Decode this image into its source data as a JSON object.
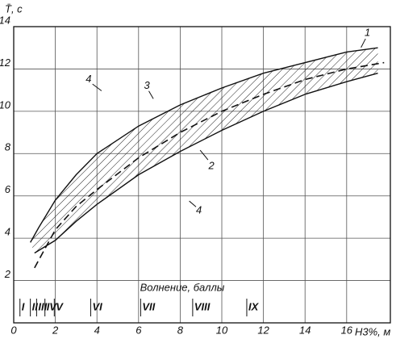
{
  "chart_data": {
    "type": "band",
    "ylabel": "T̄, c",
    "xlabel": "H3%, м",
    "xlim": [
      0,
      18.1
    ],
    "ylim": [
      0,
      14
    ],
    "xticks": [
      0,
      2,
      4,
      6,
      8,
      10,
      12,
      14,
      16
    ],
    "yticks": [
      2,
      4,
      6,
      8,
      10,
      12,
      14
    ],
    "grid": true,
    "color": "#111",
    "series": [
      {
        "role": "upper",
        "x": [
          0.8,
          1.2,
          2,
          3,
          4,
          6,
          8,
          10,
          12,
          14,
          16,
          17.5
        ],
        "values": [
          3.8,
          4.5,
          5.8,
          7.0,
          8.0,
          9.3,
          10.3,
          11.1,
          11.8,
          12.3,
          12.8,
          13.0
        ]
      },
      {
        "role": "lower",
        "x": [
          1.0,
          2,
          3,
          4,
          6,
          8,
          10,
          12,
          14,
          16,
          17.5
        ],
        "values": [
          3.3,
          3.9,
          4.8,
          5.6,
          7.0,
          8.1,
          9.1,
          10.0,
          10.8,
          11.4,
          11.8
        ]
      },
      {
        "role": "mean",
        "dashed": true,
        "x": [
          1.0,
          2,
          3,
          4,
          6,
          8,
          10,
          12,
          14,
          16,
          17.8
        ],
        "values": [
          2.6,
          4.4,
          5.5,
          6.3,
          7.8,
          9.0,
          10.0,
          10.8,
          11.5,
          12.0,
          12.3
        ]
      }
    ],
    "annotations": [
      {
        "text": "1",
        "x": 17.0,
        "y": 13.7
      },
      {
        "text": "2",
        "x": 9.5,
        "y": 7.4
      },
      {
        "text": "3",
        "x": 6.4,
        "y": 11.2
      },
      {
        "text": "4",
        "x": 3.6,
        "y": 11.5
      },
      {
        "text": "4",
        "x": 8.9,
        "y": 5.3
      }
    ],
    "wave_scale": {
      "title": "Волнение, баллы",
      "grades": [
        {
          "label": "I",
          "x": 0.3
        },
        {
          "label": "II",
          "x": 0.8
        },
        {
          "label": "III",
          "x": 1.1
        },
        {
          "label": "IV",
          "x": 1.5
        },
        {
          "label": "V",
          "x": 1.95
        },
        {
          "label": "VI",
          "x": 3.7
        },
        {
          "label": "VII",
          "x": 6.1
        },
        {
          "label": "VIII",
          "x": 8.6
        },
        {
          "label": "IX",
          "x": 11.2
        }
      ]
    }
  }
}
